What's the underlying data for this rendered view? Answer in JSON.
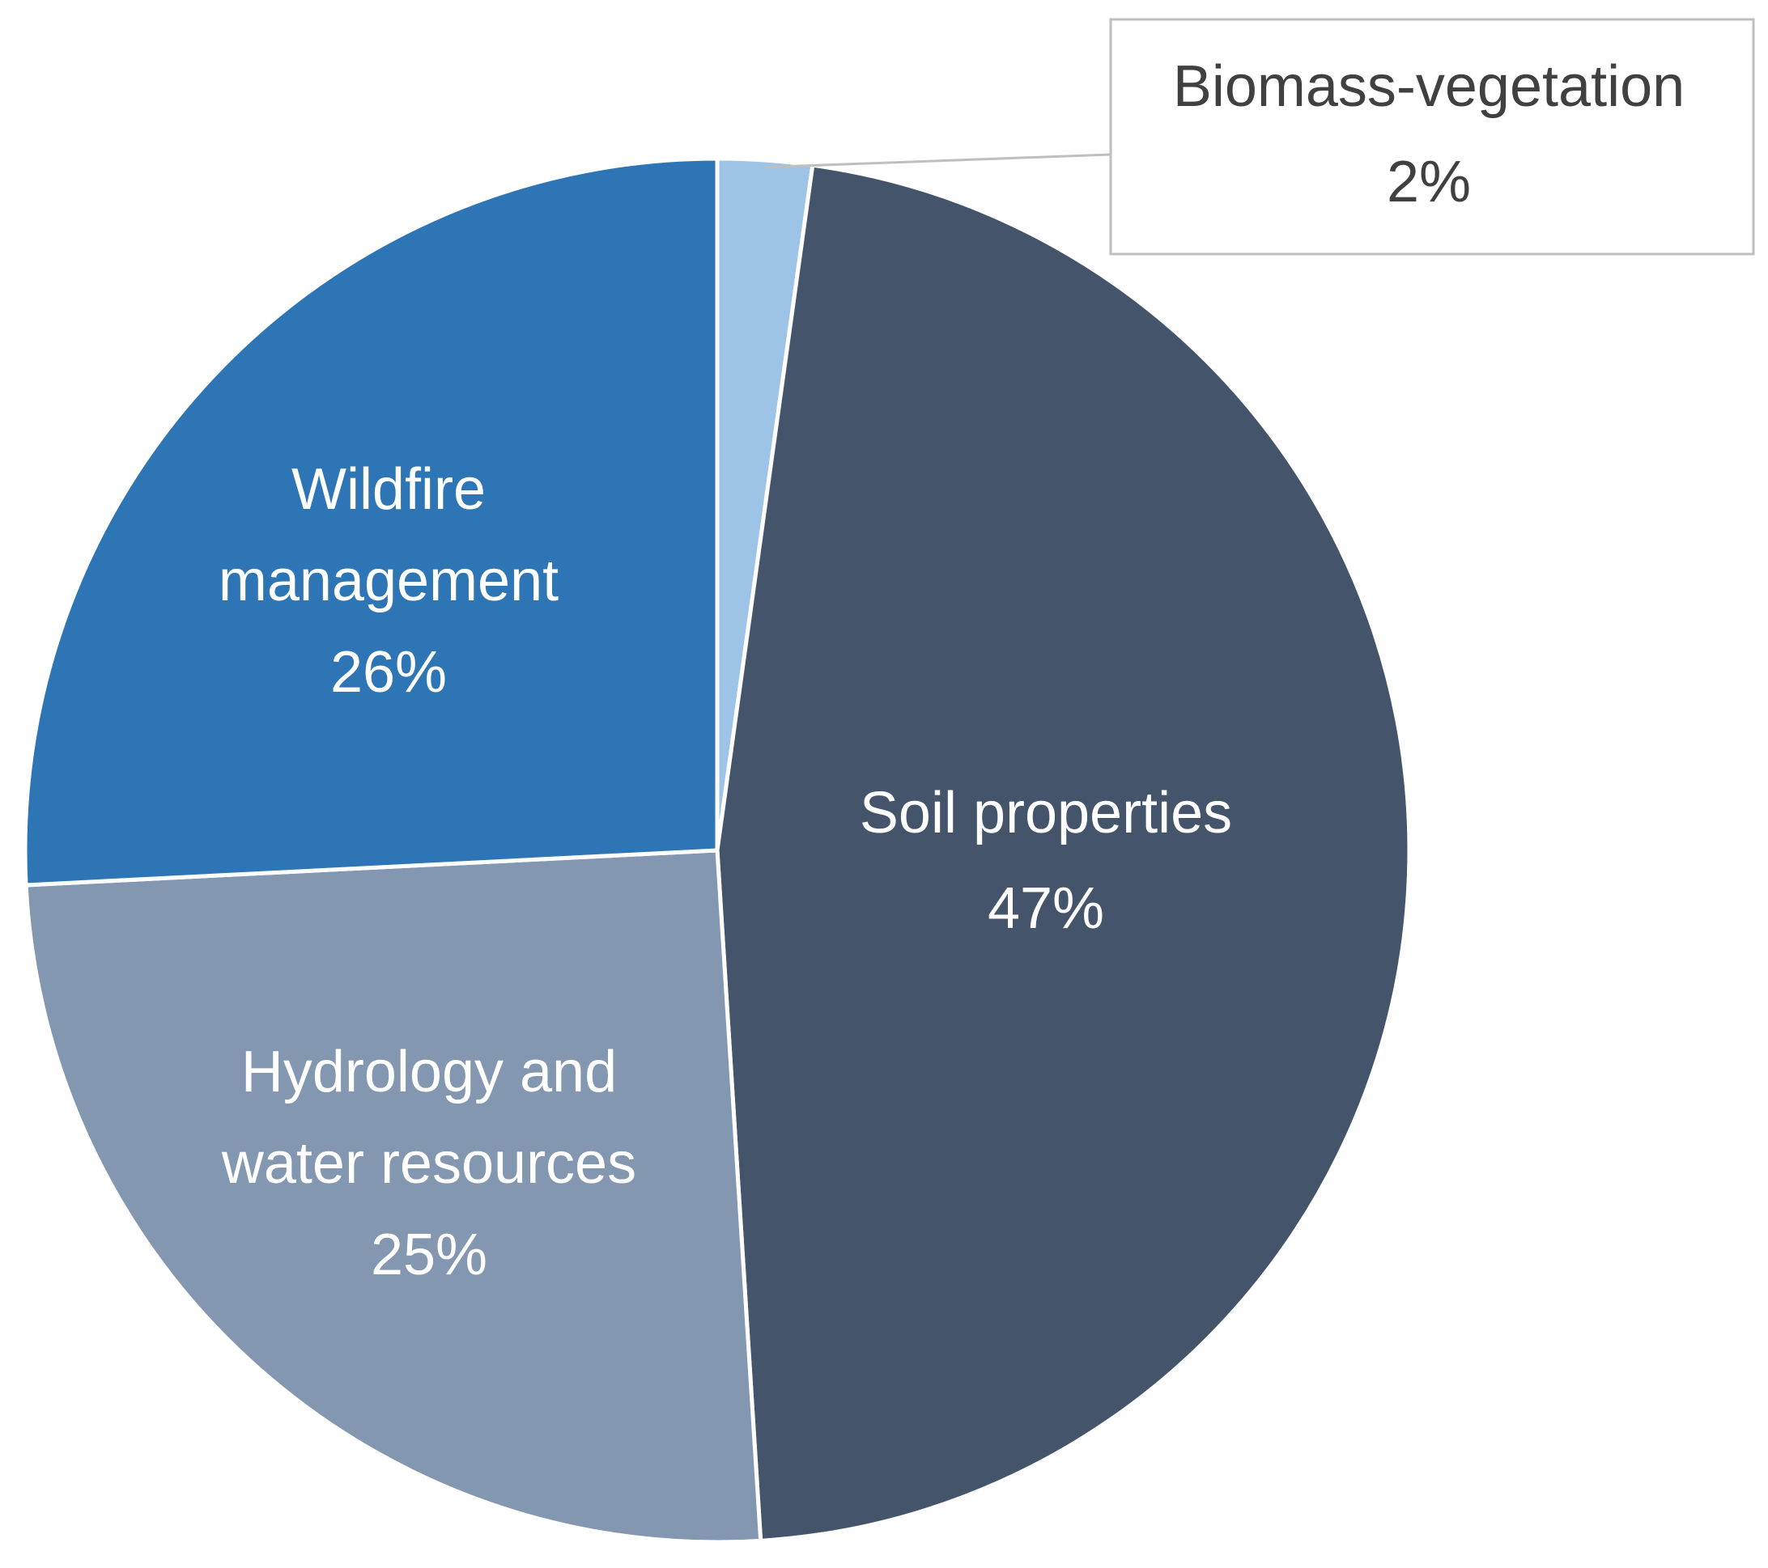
{
  "chart_data": {
    "type": "pie",
    "title": "",
    "start": "top",
    "direction": "clockwise",
    "slices": [
      {
        "label_lines": [
          "Biomass-vegetation"
        ],
        "percent_label": "2%",
        "value": 2.2,
        "color": "#9dc3e6",
        "label_color": "#404040",
        "callout": true
      },
      {
        "label_lines": [
          "Soil properties"
        ],
        "percent_label": "47%",
        "value": 46.8,
        "color": "#44546a",
        "label_color": "#ffffff",
        "callout": false
      },
      {
        "label_lines": [
          "Hydrology and",
          "water resources"
        ],
        "percent_label": "25%",
        "value": 25.2,
        "color": "#8497b0",
        "label_color": "#ffffff",
        "callout": false
      },
      {
        "label_lines": [
          "Wildfire",
          "management"
        ],
        "percent_label": "26%",
        "value": 25.8,
        "color": "#2e75b6",
        "label_color": "#ffffff",
        "callout": false
      }
    ],
    "callout_border_color": "#bfbfbf"
  }
}
